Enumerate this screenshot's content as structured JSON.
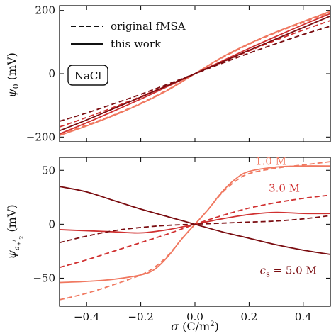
{
  "chart_data": [
    {
      "type": "line",
      "ylabel": "ψ₀ (mV)",
      "xlim": [
        -0.5,
        0.5
      ],
      "ylim": [
        -215,
        215
      ],
      "xticks": [
        -0.4,
        -0.2,
        0.0,
        0.2,
        0.4
      ],
      "yticks": [
        -200,
        0,
        200
      ],
      "ytick_labels": [
        "−200",
        "0",
        "200"
      ],
      "legend": {
        "placement": "top-left",
        "entries": [
          {
            "label": "original fMSA",
            "style": "dashed"
          },
          {
            "label": "this work",
            "style": "solid"
          }
        ]
      },
      "annotation": {
        "text": "NaCl",
        "boxed": true
      },
      "series": [
        {
          "concentration_M": 1.0,
          "style": "solid",
          "color": "#f07860",
          "x": [
            -0.5,
            -0.4,
            -0.3,
            -0.2,
            -0.1,
            0.0,
            0.1,
            0.2,
            0.3,
            0.4,
            0.5
          ],
          "y": [
            -195,
            -165,
            -132,
            -95,
            -52,
            0,
            52,
            95,
            132,
            165,
            197
          ]
        },
        {
          "concentration_M": 1.0,
          "style": "dashed",
          "color": "#f07860",
          "x": [
            -0.5,
            -0.4,
            -0.3,
            -0.2,
            -0.1,
            0.0,
            0.1,
            0.2,
            0.3,
            0.4,
            0.5
          ],
          "y": [
            -192,
            -162,
            -130,
            -93,
            -50,
            0,
            50,
            93,
            130,
            162,
            194
          ]
        },
        {
          "concentration_M": 3.0,
          "style": "solid",
          "color": "#d03030",
          "x": [
            -0.5,
            -0.4,
            -0.3,
            -0.2,
            -0.1,
            0.0,
            0.1,
            0.2,
            0.3,
            0.4,
            0.5
          ],
          "y": [
            -190,
            -155,
            -118,
            -80,
            -40,
            0,
            40,
            80,
            118,
            155,
            190
          ]
        },
        {
          "concentration_M": 3.0,
          "style": "dashed",
          "color": "#d03030",
          "x": [
            -0.5,
            -0.4,
            -0.3,
            -0.2,
            -0.1,
            0.0,
            0.1,
            0.2,
            0.3,
            0.4,
            0.5
          ],
          "y": [
            -168,
            -138,
            -106,
            -72,
            -36,
            0,
            36,
            72,
            106,
            138,
            168
          ]
        },
        {
          "concentration_M": 5.0,
          "style": "solid",
          "color": "#7a0c10",
          "x": [
            -0.5,
            -0.4,
            -0.3,
            -0.2,
            -0.1,
            0.0,
            0.1,
            0.2,
            0.3,
            0.4,
            0.5
          ],
          "y": [
            -180,
            -146,
            -110,
            -74,
            -37,
            0,
            37,
            74,
            110,
            146,
            182
          ]
        },
        {
          "concentration_M": 5.0,
          "style": "dashed",
          "color": "#7a0c10",
          "x": [
            -0.5,
            -0.4,
            -0.3,
            -0.2,
            -0.1,
            0.0,
            0.1,
            0.2,
            0.3,
            0.4,
            0.5
          ],
          "y": [
            -150,
            -124,
            -95,
            -65,
            -33,
            0,
            33,
            65,
            95,
            124,
            150
          ]
        }
      ]
    },
    {
      "type": "line",
      "xlabel": "σ (C/m²)",
      "ylabel": "ψ a± / 2 (mV)",
      "xlim": [
        -0.5,
        0.5
      ],
      "ylim": [
        -76,
        62
      ],
      "xticks": [
        -0.4,
        -0.2,
        0.0,
        0.2,
        0.4
      ],
      "xtick_labels": [
        "−0.4",
        "−0.2",
        "0.0",
        "0.2",
        "0.4"
      ],
      "yticks": [
        -50,
        0,
        50
      ],
      "ytick_labels": [
        "−50",
        "0",
        "50"
      ],
      "labels": [
        {
          "text": "1.0 M",
          "color": "#f07860",
          "x": 0.28,
          "y": 55
        },
        {
          "text": "3.0 M",
          "color": "#d03030",
          "x": 0.33,
          "y": 30
        },
        {
          "text": "c",
          "sub": "s",
          "rest": " = 5.0 M",
          "color": "#7a0c10",
          "x": 0.24,
          "y": -46
        }
      ],
      "series": [
        {
          "concentration_M": 1.0,
          "style": "solid",
          "color": "#f07860",
          "x": [
            -0.5,
            -0.4,
            -0.3,
            -0.2,
            -0.15,
            -0.1,
            -0.05,
            0.0,
            0.05,
            0.1,
            0.15,
            0.2,
            0.3,
            0.4,
            0.5
          ],
          "y": [
            -54,
            -53,
            -51,
            -47,
            -42,
            -30,
            -14,
            0,
            14,
            30,
            42,
            49,
            53,
            54,
            54
          ]
        },
        {
          "concentration_M": 1.0,
          "style": "dashed",
          "color": "#f07860",
          "x": [
            -0.5,
            -0.4,
            -0.3,
            -0.2,
            -0.15,
            -0.1,
            -0.05,
            0.0,
            0.05,
            0.1,
            0.15,
            0.2,
            0.3,
            0.4,
            0.5
          ],
          "y": [
            -70,
            -64,
            -56,
            -47,
            -40,
            -29,
            -14,
            0,
            14,
            29,
            40,
            47,
            52,
            55,
            58
          ]
        },
        {
          "concentration_M": 3.0,
          "style": "solid",
          "color": "#d03030",
          "x": [
            -0.5,
            -0.4,
            -0.3,
            -0.2,
            -0.1,
            0.0,
            0.1,
            0.2,
            0.3,
            0.4,
            0.5
          ],
          "y": [
            -5,
            -6,
            -7,
            -8,
            -5,
            0,
            5,
            9,
            11,
            10,
            10
          ]
        },
        {
          "concentration_M": 3.0,
          "style": "dashed",
          "color": "#d03030",
          "x": [
            -0.5,
            -0.4,
            -0.3,
            -0.2,
            -0.1,
            0.0,
            0.1,
            0.2,
            0.3,
            0.4,
            0.5
          ],
          "y": [
            -40,
            -33,
            -25,
            -17,
            -9,
            0,
            8,
            15,
            20,
            24,
            27
          ]
        },
        {
          "concentration_M": 5.0,
          "style": "solid",
          "color": "#7a0c10",
          "x": [
            -0.5,
            -0.4,
            -0.3,
            -0.2,
            -0.1,
            0.0,
            0.1,
            0.2,
            0.3,
            0.4,
            0.5
          ],
          "y": [
            35,
            30,
            22,
            14,
            7,
            0,
            -7,
            -13,
            -19,
            -24,
            -28
          ]
        },
        {
          "concentration_M": 5.0,
          "style": "dashed",
          "color": "#7a0c10",
          "x": [
            -0.5,
            -0.4,
            -0.3,
            -0.2,
            -0.1,
            0.0,
            0.1,
            0.2,
            0.3,
            0.4,
            0.5
          ],
          "y": [
            -17,
            -11,
            -6,
            -3,
            -1,
            0,
            1,
            2,
            3,
            5,
            8
          ]
        }
      ]
    }
  ]
}
